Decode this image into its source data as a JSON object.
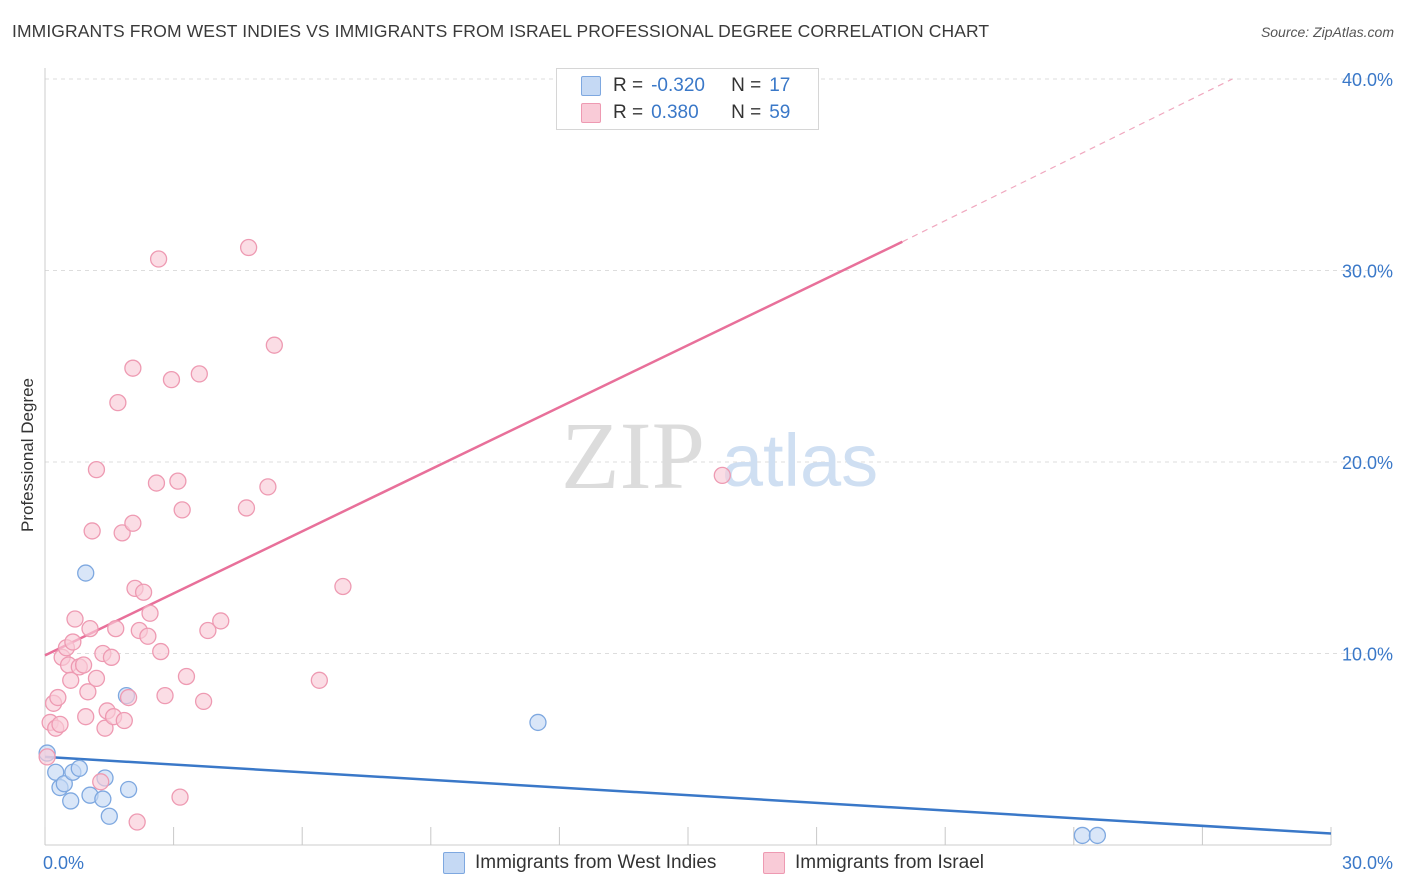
{
  "header": {
    "title": "IMMIGRANTS FROM WEST INDIES VS IMMIGRANTS FROM ISRAEL PROFESSIONAL DEGREE CORRELATION CHART",
    "source": "Source: ZipAtlas.com"
  },
  "watermark": {
    "zip": "ZIP",
    "atlas": "atlas"
  },
  "legend": {
    "r_label": "R =",
    "n_label": "N =",
    "series": [
      {
        "name": "Immigrants from West Indies",
        "r": "-0.320",
        "n": "17",
        "fill": "#c5d9f4",
        "stroke": "#7ea8e0"
      },
      {
        "name": "Immigrants from Israel",
        "r": "0.380",
        "n": "59",
        "fill": "#f9cbd7",
        "stroke": "#ee9ab2"
      }
    ]
  },
  "colors": {
    "blue_line": "#3a78c8",
    "pink_line": "#e8709a",
    "axis_text": "#3a78c8",
    "grid": "#dddddd"
  },
  "chart_data": {
    "type": "scatter",
    "title": "IMMIGRANTS FROM WEST INDIES VS IMMIGRANTS FROM ISRAEL PROFESSIONAL DEGREE CORRELATION CHART",
    "xlabel": "",
    "ylabel": "Professional Degree",
    "xlim": [
      0,
      30
    ],
    "ylim": [
      0,
      40
    ],
    "x_tick_labels": [
      {
        "value": 0,
        "label": "0.0%"
      },
      {
        "value": 30,
        "label": "30.0%"
      }
    ],
    "y_tick_labels": [
      {
        "value": 10,
        "label": "10.0%"
      },
      {
        "value": 20,
        "label": "20.0%"
      },
      {
        "value": 30,
        "label": "30.0%"
      },
      {
        "value": 40,
        "label": "40.0%"
      }
    ],
    "x_minor_ticks": [
      0,
      3,
      6,
      9,
      12,
      15,
      18,
      21,
      24,
      27,
      30
    ],
    "y_grid": [
      10,
      20,
      30,
      40
    ],
    "series": [
      {
        "name": "Immigrants from West Indies",
        "color": "#7ea8e0",
        "fill": "#c5d9f4",
        "points": [
          [
            0.05,
            4.8
          ],
          [
            0.25,
            3.8
          ],
          [
            0.35,
            3.0
          ],
          [
            0.45,
            3.2
          ],
          [
            0.6,
            2.3
          ],
          [
            0.65,
            3.8
          ],
          [
            0.8,
            4.0
          ],
          [
            0.95,
            14.2
          ],
          [
            1.05,
            2.6
          ],
          [
            1.35,
            2.4
          ],
          [
            1.4,
            3.5
          ],
          [
            1.5,
            1.5
          ],
          [
            1.9,
            7.8
          ],
          [
            1.95,
            2.9
          ],
          [
            11.5,
            6.4
          ],
          [
            24.2,
            0.5
          ],
          [
            24.55,
            0.5
          ]
        ],
        "trend": {
          "x0": 0,
          "y0": 4.6,
          "x1": 30,
          "y1": 0.6,
          "dashed_to": null
        }
      },
      {
        "name": "Immigrants from Israel",
        "color": "#ee9ab2",
        "fill": "#f9cbd7",
        "points": [
          [
            0.05,
            4.6
          ],
          [
            0.12,
            6.4
          ],
          [
            0.2,
            7.4
          ],
          [
            0.25,
            6.1
          ],
          [
            0.3,
            7.7
          ],
          [
            0.35,
            6.3
          ],
          [
            0.4,
            9.8
          ],
          [
            0.5,
            10.3
          ],
          [
            0.55,
            9.4
          ],
          [
            0.6,
            8.6
          ],
          [
            0.65,
            10.6
          ],
          [
            0.7,
            11.8
          ],
          [
            0.8,
            9.3
          ],
          [
            0.9,
            9.4
          ],
          [
            0.95,
            6.7
          ],
          [
            1.0,
            8.0
          ],
          [
            1.05,
            11.3
          ],
          [
            1.1,
            16.4
          ],
          [
            1.2,
            19.6
          ],
          [
            1.2,
            8.7
          ],
          [
            1.3,
            3.3
          ],
          [
            1.35,
            10.0
          ],
          [
            1.4,
            6.1
          ],
          [
            1.45,
            7.0
          ],
          [
            1.55,
            9.8
          ],
          [
            1.6,
            6.7
          ],
          [
            1.65,
            11.3
          ],
          [
            1.7,
            23.1
          ],
          [
            1.8,
            16.3
          ],
          [
            1.85,
            6.5
          ],
          [
            1.95,
            7.7
          ],
          [
            2.05,
            16.8
          ],
          [
            2.1,
            13.4
          ],
          [
            2.05,
            24.9
          ],
          [
            2.2,
            11.2
          ],
          [
            2.3,
            13.2
          ],
          [
            2.4,
            10.9
          ],
          [
            2.45,
            12.1
          ],
          [
            2.6,
            18.9
          ],
          [
            2.65,
            30.6
          ],
          [
            2.7,
            10.1
          ],
          [
            2.8,
            7.8
          ],
          [
            2.95,
            24.3
          ],
          [
            3.1,
            19.0
          ],
          [
            3.15,
            2.5
          ],
          [
            3.2,
            17.5
          ],
          [
            3.3,
            8.8
          ],
          [
            3.6,
            24.6
          ],
          [
            3.7,
            7.5
          ],
          [
            3.8,
            11.2
          ],
          [
            4.1,
            11.7
          ],
          [
            4.7,
            17.6
          ],
          [
            4.75,
            31.2
          ],
          [
            5.2,
            18.7
          ],
          [
            5.35,
            26.1
          ],
          [
            6.4,
            8.6
          ],
          [
            6.95,
            13.5
          ],
          [
            2.15,
            1.2
          ],
          [
            15.8,
            19.3
          ]
        ],
        "trend": {
          "x0": 0,
          "y0": 9.9,
          "x1": 20,
          "y1": 31.5,
          "dashed_to": {
            "x": 27.7,
            "y": 40.0
          }
        }
      }
    ],
    "legend_position": "top-center"
  }
}
